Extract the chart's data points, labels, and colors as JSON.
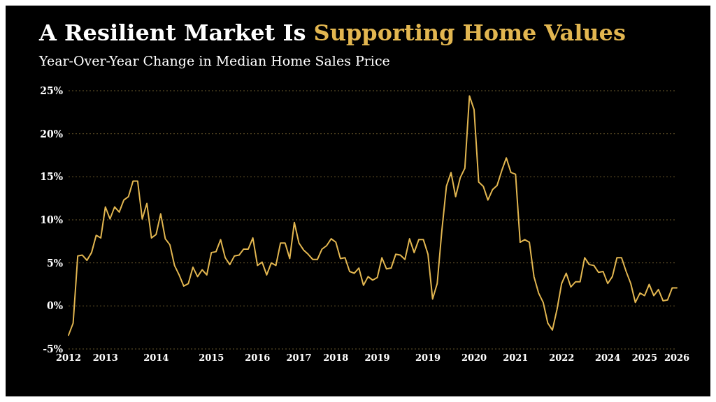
{
  "chart_data": {
    "type": "line",
    "title": "A Resilient Market Is Supporting Home Values",
    "subtitle": "Year-Over-Year Change in Median Home Sales Price",
    "categories": [
      "2012",
      null,
      null,
      null,
      null,
      null,
      null,
      null,
      "2013",
      null,
      null,
      null,
      null,
      null,
      null,
      null,
      null,
      null,
      null,
      "2014",
      null,
      null,
      null,
      null,
      null,
      null,
      null,
      null,
      null,
      null,
      null,
      "2015",
      null,
      null,
      null,
      null,
      null,
      null,
      null,
      null,
      null,
      "2016",
      null,
      null,
      null,
      null,
      null,
      null,
      null,
      null,
      "2017",
      null,
      null,
      null,
      null,
      null,
      null,
      null,
      "2018",
      null,
      null,
      null,
      null,
      null,
      null,
      null,
      null,
      "2019",
      null,
      null,
      null,
      null,
      null,
      null,
      null,
      null,
      null,
      null,
      "2019",
      null,
      null,
      null,
      null,
      null,
      null,
      null,
      null,
      null,
      "2020",
      null,
      null,
      null,
      null,
      null,
      null,
      null,
      null,
      "2021",
      null,
      null,
      null,
      null,
      null,
      null,
      null,
      null,
      null,
      "2022",
      null,
      null,
      null,
      null,
      null,
      null,
      null,
      null,
      null,
      "2024",
      null,
      null,
      null,
      null,
      null,
      null,
      null,
      "2025",
      null,
      null,
      null,
      null,
      null,
      null,
      "2026"
    ],
    "series": [
      {
        "color": "#e2b650",
        "values": [
          -3.4,
          -2.0,
          5.8,
          5.9,
          5.3,
          6.2,
          8.2,
          7.9,
          11.5,
          10.1,
          11.5,
          10.9,
          12.3,
          12.7,
          14.5,
          14.5,
          10.1,
          11.9,
          7.9,
          8.3,
          10.7,
          7.8,
          7.1,
          4.7,
          3.6,
          2.3,
          2.6,
          4.5,
          3.4,
          4.2,
          3.6,
          6.2,
          6.3,
          7.7,
          5.6,
          4.8,
          5.8,
          5.9,
          6.6,
          6.6,
          7.9,
          4.7,
          5.1,
          3.6,
          5.0,
          4.7,
          7.3,
          7.3,
          5.5,
          9.7,
          7.3,
          6.5,
          6.0,
          5.4,
          5.4,
          6.6,
          7.0,
          7.8,
          7.4,
          5.5,
          5.6,
          4.0,
          3.8,
          4.4,
          2.4,
          3.4,
          3.0,
          3.3,
          5.6,
          4.3,
          4.4,
          6.0,
          5.9,
          5.4,
          7.8,
          6.2,
          7.7,
          7.7,
          6.0,
          0.8,
          2.6,
          8.7,
          13.9,
          15.5,
          12.7,
          14.9,
          16.0,
          24.4,
          22.8,
          14.4,
          13.9,
          12.3,
          13.5,
          14.0,
          15.7,
          17.2,
          15.5,
          15.3,
          7.4,
          7.7,
          7.4,
          3.4,
          1.5,
          0.4,
          -2.0,
          -2.8,
          -0.4,
          2.6,
          3.8,
          2.2,
          2.8,
          2.8,
          5.6,
          4.8,
          4.7,
          3.9,
          4.0,
          2.6,
          3.4,
          5.6,
          5.6,
          4.0,
          2.6,
          0.4,
          1.5,
          1.2,
          2.5,
          1.2,
          1.9,
          0.6,
          0.7,
          2.1,
          2.1
        ]
      }
    ],
    "ylim": [
      -5,
      25
    ],
    "yticks": [
      {
        "value": -5,
        "label": "-5%"
      },
      {
        "value": 0,
        "label": "0%"
      },
      {
        "value": 5,
        "label": "5%"
      },
      {
        "value": 10,
        "label": "10%"
      },
      {
        "value": 15,
        "label": "15%"
      },
      {
        "value": 20,
        "label": "20%"
      },
      {
        "value": 25,
        "label": "25%"
      }
    ],
    "grid": "y",
    "legend": false,
    "marker": "none",
    "line_style": "solid"
  }
}
